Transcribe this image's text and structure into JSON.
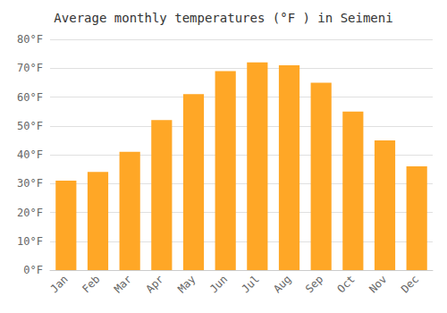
{
  "chart_data": {
    "type": "bar",
    "title": "Average monthly temperatures (°F ) in Seimeni",
    "categories": [
      "Jan",
      "Feb",
      "Mar",
      "Apr",
      "May",
      "Jun",
      "Jul",
      "Aug",
      "Sep",
      "Oct",
      "Nov",
      "Dec"
    ],
    "values": [
      31,
      34,
      41,
      52,
      61,
      69,
      72,
      71,
      65,
      55,
      45,
      36
    ],
    "color": "#FFA726",
    "ylim": [
      0,
      80
    ],
    "yticks": [
      {
        "value": 0,
        "label": "0°F"
      },
      {
        "value": 10,
        "label": "10°F"
      },
      {
        "value": 20,
        "label": "20°F"
      },
      {
        "value": 30,
        "label": "30°F"
      },
      {
        "value": 40,
        "label": "40°F"
      },
      {
        "value": 50,
        "label": "50°F"
      },
      {
        "value": 60,
        "label": "60°F"
      },
      {
        "value": 70,
        "label": "70°F"
      },
      {
        "value": 80,
        "label": "80°F"
      }
    ],
    "grid": true
  }
}
